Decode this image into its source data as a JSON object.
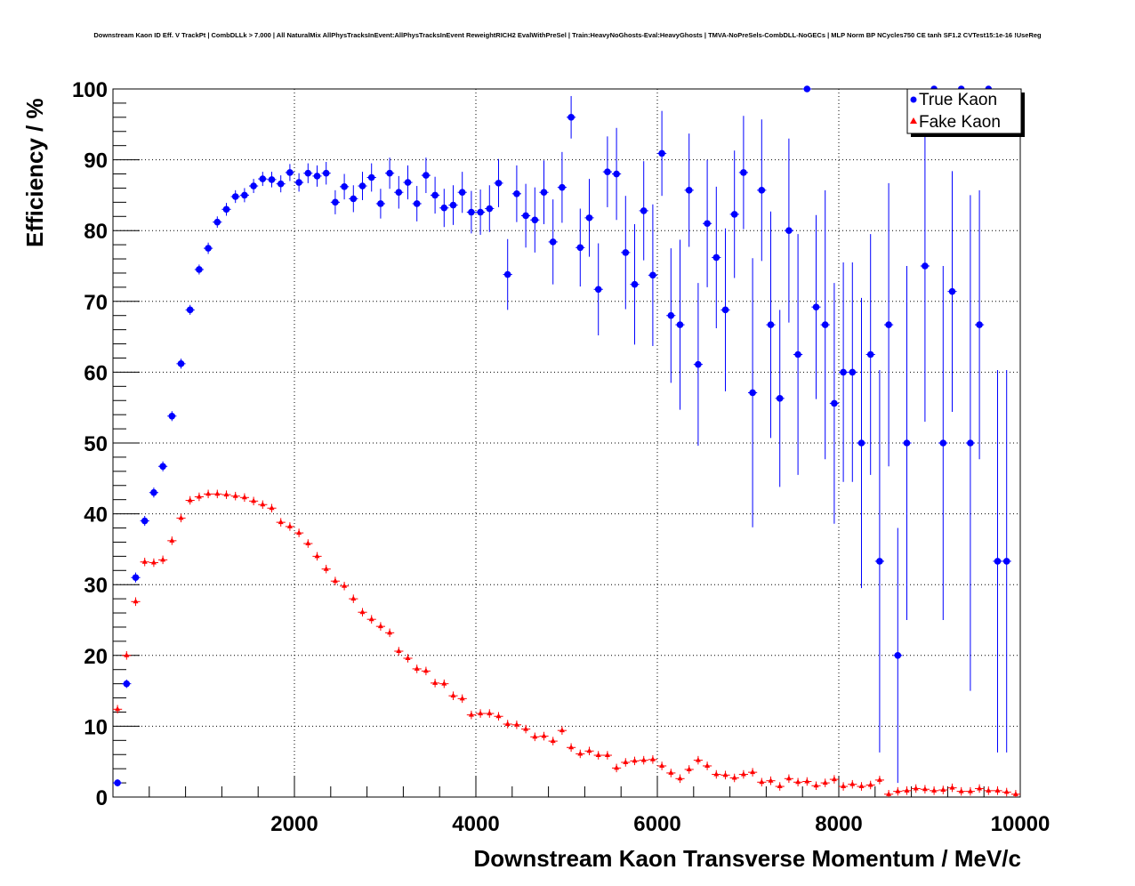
{
  "chart_data": {
    "type": "scatter",
    "title": "Downstream Kaon ID Eff. V TrackPt | CombDLLk > 7.000 | All NaturalMix AllPhysTracksInEvent:AllPhysTracksInEvent ReweightRICH2 EvalWithPreSel | Train:HeavyNoGhosts-Eval:HeavyGhosts | TMVA-NoPreSels-CombDLL-NoGECs | MLP Norm BP NCycles750 CE tanh SF1.2 CVTest15:1e-16 !UseReg",
    "xlabel": "Downstream Kaon Transverse Momentum / MeV/c",
    "ylabel": "Efficiency / %",
    "xlim": [
      0,
      10000
    ],
    "ylim": [
      0,
      100
    ],
    "xticks": [
      "2000",
      "4000",
      "6000",
      "8000",
      "10000"
    ],
    "xtick_values": [
      2000,
      4000,
      6000,
      8000,
      10000
    ],
    "yticks": [
      "0",
      "10",
      "20",
      "30",
      "40",
      "50",
      "60",
      "70",
      "80",
      "90",
      "100"
    ],
    "ytick_values": [
      0,
      10,
      20,
      30,
      40,
      50,
      60,
      70,
      80,
      90,
      100
    ],
    "grid": true,
    "legend_position": "top-right",
    "bin_width": 100,
    "x_start": 50,
    "series": [
      {
        "name": "True Kaon",
        "color": "#0000ff",
        "marker": "circle",
        "values": [
          2,
          16,
          31,
          39,
          43,
          46.7,
          53.8,
          61.2,
          68.8,
          74.5,
          77.5,
          81.2,
          83,
          84.8,
          85,
          86.3,
          87.3,
          87.2,
          86.6,
          88.2,
          86.8,
          88.1,
          87.7,
          88.1,
          84,
          86.2,
          84.5,
          86.3,
          87.5,
          83.8,
          88.1,
          85.4,
          86.8,
          83.8,
          87.8,
          85,
          83.2,
          83.6,
          85.4,
          82.6,
          82.6,
          83.1,
          86.7,
          73.8,
          85.2,
          82.1,
          81.5,
          85.4,
          78.4,
          86.1,
          96,
          77.6,
          81.8,
          71.7,
          88.3,
          88,
          76.9,
          72.4,
          82.8,
          73.7,
          90.9,
          68,
          66.7,
          85.7,
          61.1,
          81,
          76.2,
          68.8,
          82.3,
          88.2,
          57.1,
          85.7,
          66.7,
          56.3,
          80,
          62.5,
          100,
          69.2,
          66.7,
          55.6,
          60,
          60,
          50,
          62.5,
          33.3,
          66.7,
          20,
          50,
          null,
          75,
          100,
          50,
          71.4,
          100,
          50,
          66.7,
          100,
          33.3,
          33.3,
          null
        ],
        "errors": [
          0.5,
          0.6,
          0.7,
          0.7,
          0.7,
          0.7,
          0.7,
          0.7,
          0.7,
          0.7,
          0.8,
          0.8,
          0.9,
          0.9,
          1,
          1,
          1,
          1.1,
          1.2,
          1.2,
          1.3,
          1.4,
          1.5,
          1.6,
          1.7,
          1.8,
          1.9,
          2,
          2,
          2.1,
          2.2,
          2.3,
          2.4,
          2.5,
          2.5,
          2.6,
          2.7,
          2.8,
          2.9,
          3,
          3.2,
          3.3,
          3.4,
          5,
          4,
          4.5,
          4.6,
          4.5,
          6,
          5,
          3,
          5.5,
          5.5,
          6.5,
          5,
          6.5,
          8,
          8.5,
          7,
          10,
          6,
          9.5,
          12,
          8,
          11.5,
          9,
          10,
          11.5,
          9,
          8,
          19,
          10,
          16,
          12.5,
          13,
          17,
          0,
          13,
          19,
          17,
          15.5,
          15.5,
          20.5,
          17,
          27,
          20,
          18,
          25,
          null,
          22,
          0,
          25,
          17,
          0,
          35,
          19,
          0,
          27,
          27,
          null
        ]
      },
      {
        "name": "Fake Kaon",
        "color": "#ff0000",
        "marker": "triangle",
        "values": [
          12.4,
          20,
          27.6,
          33.2,
          33.1,
          33.5,
          36.2,
          39.4,
          41.9,
          42.4,
          42.8,
          42.8,
          42.7,
          42.5,
          42.3,
          41.8,
          41.3,
          40.8,
          38.8,
          38.2,
          37.3,
          35.8,
          34,
          32.2,
          30.5,
          29.8,
          28,
          26.1,
          25.1,
          24.1,
          23.2,
          20.6,
          19.6,
          18.1,
          17.8,
          16.1,
          16,
          14.3,
          13.9,
          11.6,
          11.8,
          11.8,
          11.4,
          10.3,
          10.2,
          9.6,
          8.5,
          8.6,
          7.9,
          9.4,
          7,
          6.1,
          6.5,
          5.9,
          5.9,
          4.1,
          4.9,
          5.1,
          5.2,
          5.3,
          4.4,
          3.4,
          2.6,
          3.9,
          5.2,
          4.4,
          3.2,
          3.1,
          2.7,
          3.2,
          3.5,
          2.1,
          2.3,
          1.5,
          2.6,
          2.1,
          2.2,
          1.6,
          2,
          2.5,
          1.5,
          1.8,
          1.5,
          1.7,
          2.4,
          0.4,
          0.8,
          0.9,
          1.2,
          1.1,
          0.9,
          1,
          1.3,
          0.8,
          0.8,
          1.2,
          0.9,
          0.9,
          0.7,
          0.4
        ],
        "errors": 0.6
      }
    ]
  },
  "legend": {
    "true_kaon": "True Kaon",
    "fake_kaon": "Fake Kaon"
  }
}
